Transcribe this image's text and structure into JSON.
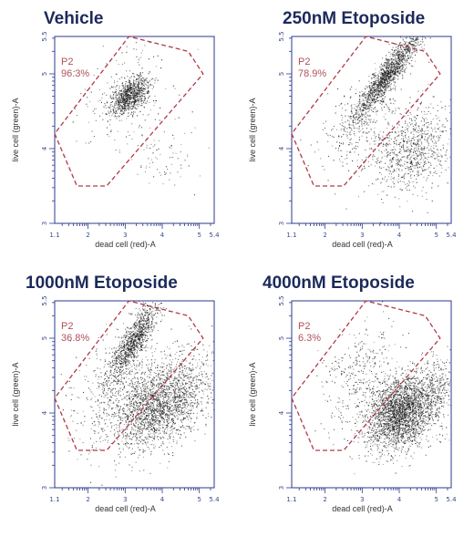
{
  "colors": {
    "title": "#1c2a5a",
    "axis": "#2b3a8c",
    "gate": "#b03a48",
    "gate_text": "#b0505a",
    "dots": "#1a1a1a"
  },
  "chart_data": [
    {
      "type": "scatter",
      "title": "Vehicle",
      "xlabel": "dead cell (red)-A",
      "ylabel": "live cell (green)-A",
      "xscale": "log",
      "yscale": "log",
      "xlim": [
        1.1,
        5.4
      ],
      "ylim": [
        3,
        5.5
      ],
      "x_ticks": [
        "1.1",
        "2",
        "3",
        "4",
        "5",
        "5.4"
      ],
      "y_ticks": [
        "3",
        "4",
        "5",
        "5.5"
      ],
      "gate": {
        "name": "P2",
        "percent": "96.3%",
        "polygon": [
          [
            1.1,
            4.2
          ],
          [
            1.7,
            3.5
          ],
          [
            2.5,
            3.5
          ],
          [
            5.1,
            5.0
          ],
          [
            4.7,
            5.3
          ],
          [
            3.1,
            5.5
          ]
        ]
      },
      "populations": [
        {
          "x": 3.1,
          "y": 4.7,
          "sx": 0.25,
          "sy": 0.13,
          "rho": 0.5,
          "n": 900
        },
        {
          "x": 3.1,
          "y": 4.75,
          "sx": 0.7,
          "sy": 0.35,
          "rho": 0.3,
          "n": 180
        },
        {
          "x": 4.0,
          "y": 3.9,
          "sx": 0.55,
          "sy": 0.25,
          "rho": 0.0,
          "n": 80
        }
      ]
    },
    {
      "type": "scatter",
      "title": "250nM Etoposide",
      "xlabel": "dead cell (red)-A",
      "ylabel": "live cell (green)-A",
      "xscale": "log",
      "yscale": "log",
      "xlim": [
        1.1,
        5.4
      ],
      "ylim": [
        3,
        5.5
      ],
      "x_ticks": [
        "1.1",
        "2",
        "3",
        "4",
        "5",
        "5.4"
      ],
      "y_ticks": [
        "3",
        "4",
        "5",
        "5.5"
      ],
      "gate": {
        "name": "P2",
        "percent": "78.9%",
        "polygon": [
          [
            1.1,
            4.2
          ],
          [
            1.7,
            3.5
          ],
          [
            2.5,
            3.5
          ],
          [
            5.1,
            5.0
          ],
          [
            4.7,
            5.3
          ],
          [
            3.1,
            5.5
          ]
        ]
      },
      "populations": [
        {
          "x": 3.7,
          "y": 5.0,
          "sx": 0.45,
          "sy": 0.3,
          "rho": 0.92,
          "n": 1500
        },
        {
          "x": 4.3,
          "y": 4.0,
          "sx": 0.6,
          "sy": 0.3,
          "rho": 0.2,
          "n": 900
        },
        {
          "x": 2.8,
          "y": 4.3,
          "sx": 0.5,
          "sy": 0.3,
          "rho": 0.3,
          "n": 250
        }
      ]
    },
    {
      "type": "scatter",
      "title": "1000nM Etoposide",
      "xlabel": "dead cell (red)-A",
      "ylabel": "live cell (green)-A",
      "xscale": "log",
      "yscale": "log",
      "xlim": [
        1.1,
        5.4
      ],
      "ylim": [
        3,
        5.5
      ],
      "x_ticks": [
        "1.1",
        "2",
        "3",
        "4",
        "5",
        "5.4"
      ],
      "y_ticks": [
        "3",
        "4",
        "5",
        "5.5"
      ],
      "gate": {
        "name": "P2",
        "percent": "36.8%",
        "polygon": [
          [
            1.1,
            4.2
          ],
          [
            1.7,
            3.5
          ],
          [
            2.5,
            3.5
          ],
          [
            5.1,
            5.0
          ],
          [
            4.7,
            5.3
          ],
          [
            3.1,
            5.5
          ]
        ]
      },
      "populations": [
        {
          "x": 3.2,
          "y": 4.95,
          "sx": 0.35,
          "sy": 0.28,
          "rho": 0.85,
          "n": 1100
        },
        {
          "x": 3.8,
          "y": 4.1,
          "sx": 0.5,
          "sy": 0.3,
          "rho": 0.4,
          "n": 1600
        },
        {
          "x": 4.6,
          "y": 4.25,
          "sx": 0.45,
          "sy": 0.3,
          "rho": 0.3,
          "n": 500
        },
        {
          "x": 2.7,
          "y": 4.2,
          "sx": 0.55,
          "sy": 0.4,
          "rho": 0.2,
          "n": 500
        }
      ]
    },
    {
      "type": "scatter",
      "title": "4000nM Etoposide",
      "xlabel": "dead cell (red)-A",
      "ylabel": "live cell (green)-A",
      "xscale": "log",
      "yscale": "log",
      "xlim": [
        1.1,
        5.4
      ],
      "ylim": [
        3,
        5.5
      ],
      "x_ticks": [
        "1.1",
        "2",
        "3",
        "4",
        "5",
        "5.4"
      ],
      "y_ticks": [
        "3",
        "4",
        "5",
        "5.5"
      ],
      "gate": {
        "name": "P2",
        "percent": "6.3%",
        "polygon": [
          [
            1.1,
            4.2
          ],
          [
            1.7,
            3.5
          ],
          [
            2.5,
            3.5
          ],
          [
            5.1,
            5.0
          ],
          [
            4.7,
            5.3
          ],
          [
            3.1,
            5.5
          ]
        ]
      },
      "populations": [
        {
          "x": 4.0,
          "y": 4.0,
          "sx": 0.45,
          "sy": 0.25,
          "rho": 0.3,
          "n": 2400
        },
        {
          "x": 4.9,
          "y": 4.25,
          "sx": 0.35,
          "sy": 0.25,
          "rho": 0.2,
          "n": 500
        },
        {
          "x": 2.9,
          "y": 4.5,
          "sx": 0.5,
          "sy": 0.35,
          "rho": 0.4,
          "n": 350
        }
      ]
    }
  ]
}
